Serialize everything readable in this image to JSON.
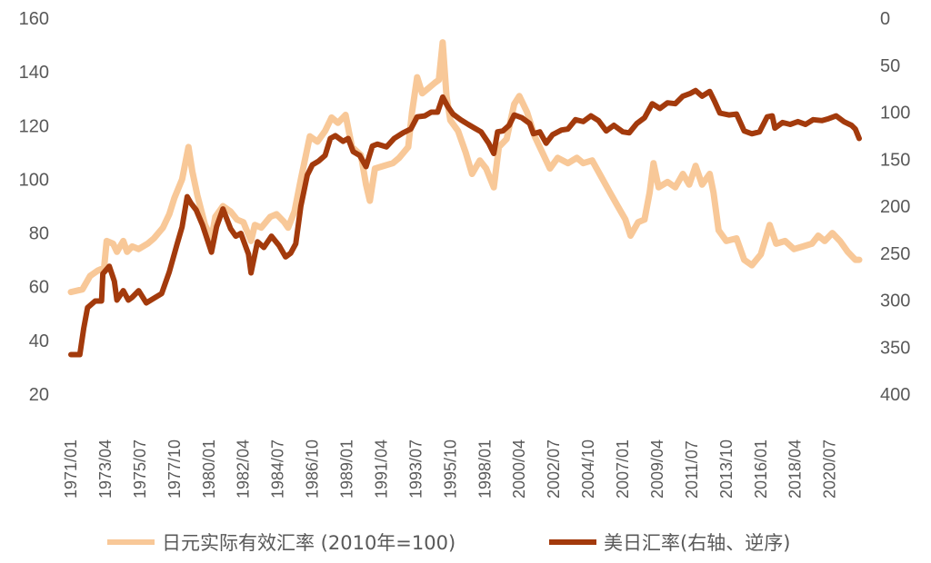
{
  "chart_data": {
    "type": "line",
    "legend_position": "bottom",
    "grid": false,
    "left_axis": {
      "ylim": [
        20,
        160
      ],
      "ticks": [
        "20",
        "40",
        "60",
        "80",
        "100",
        "120",
        "140",
        "160"
      ]
    },
    "right_axis": {
      "ylim": [
        0,
        400
      ],
      "reversed": true,
      "ticks": [
        "0",
        "50",
        "100",
        "150",
        "200",
        "250",
        "300",
        "350",
        "400"
      ]
    },
    "x_axis": {
      "range": [
        "1971/01",
        "2022/06"
      ],
      "tick_labels": [
        "1971/01",
        "1973/04",
        "1975/07",
        "1977/10",
        "1980/01",
        "1982/04",
        "1984/07",
        "1986/10",
        "1989/01",
        "1991/04",
        "1993/07",
        "1995/10",
        "1998/01",
        "2000/04",
        "2002/07",
        "2004/10",
        "2007/01",
        "2009/04",
        "2011/07",
        "2013/10",
        "2016/01",
        "2018/04",
        "2020/07"
      ]
    },
    "series": [
      {
        "name": "日元实际有效汇率 (2010年=100)",
        "axis": "left",
        "color": "#f8c898",
        "points": [
          [
            "1971/01",
            58
          ],
          [
            "1971/10",
            59
          ],
          [
            "1972/04",
            64
          ],
          [
            "1972/10",
            66
          ],
          [
            "1973/03",
            67
          ],
          [
            "1973/05",
            77
          ],
          [
            "1973/10",
            76
          ],
          [
            "1974/01",
            73
          ],
          [
            "1974/06",
            77
          ],
          [
            "1974/09",
            73
          ],
          [
            "1975/01",
            75
          ],
          [
            "1975/06",
            74
          ],
          [
            "1976/01",
            76
          ],
          [
            "1976/06",
            78
          ],
          [
            "1977/01",
            82
          ],
          [
            "1977/06",
            87
          ],
          [
            "1977/10",
            93
          ],
          [
            "1978/04",
            100
          ],
          [
            "1978/09",
            112
          ],
          [
            "1978/12",
            103
          ],
          [
            "1979/04",
            94
          ],
          [
            "1979/10",
            83
          ],
          [
            "1980/03",
            78
          ],
          [
            "1980/06",
            86
          ],
          [
            "1980/12",
            90
          ],
          [
            "1981/06",
            88
          ],
          [
            "1981/11",
            85
          ],
          [
            "1982/04",
            84
          ],
          [
            "1982/10",
            77
          ],
          [
            "1983/01",
            83
          ],
          [
            "1983/06",
            82
          ],
          [
            "1984/01",
            86
          ],
          [
            "1984/06",
            87
          ],
          [
            "1984/12",
            84
          ],
          [
            "1985/03",
            82
          ],
          [
            "1985/08",
            88
          ],
          [
            "1986/01",
            100
          ],
          [
            "1986/08",
            116
          ],
          [
            "1987/02",
            114
          ],
          [
            "1987/08",
            118
          ],
          [
            "1988/01",
            123
          ],
          [
            "1988/06",
            121
          ],
          [
            "1988/12",
            124
          ],
          [
            "1989/05",
            112
          ],
          [
            "1989/12",
            109
          ],
          [
            "1990/04",
            98
          ],
          [
            "1990/07",
            92
          ],
          [
            "1990/11",
            104
          ],
          [
            "1991/06",
            105
          ],
          [
            "1992/01",
            106
          ],
          [
            "1992/06",
            108
          ],
          [
            "1993/01",
            112
          ],
          [
            "1993/04",
            125
          ],
          [
            "1993/08",
            138
          ],
          [
            "1993/12",
            132
          ],
          [
            "1994/05",
            134
          ],
          [
            "1994/10",
            136
          ],
          [
            "1995/01",
            137
          ],
          [
            "1995/04",
            151
          ],
          [
            "1995/07",
            131
          ],
          [
            "1995/10",
            122
          ],
          [
            "1996/04",
            118
          ],
          [
            "1996/10",
            110
          ],
          [
            "1997/03",
            102
          ],
          [
            "1997/09",
            107
          ],
          [
            "1998/02",
            104
          ],
          [
            "1998/08",
            97
          ],
          [
            "1998/12",
            112
          ],
          [
            "1999/06",
            115
          ],
          [
            "1999/12",
            128
          ],
          [
            "2000/04",
            131
          ],
          [
            "2000/10",
            125
          ],
          [
            "2001/04",
            116
          ],
          [
            "2001/10",
            110
          ],
          [
            "2002/04",
            104
          ],
          [
            "2002/10",
            108
          ],
          [
            "2003/06",
            106
          ],
          [
            "2004/01",
            108
          ],
          [
            "2004/06",
            106
          ],
          [
            "2005/01",
            107
          ],
          [
            "2005/08",
            101
          ],
          [
            "2006/03",
            95
          ],
          [
            "2006/09",
            90
          ],
          [
            "2007/03",
            85
          ],
          [
            "2007/07",
            79
          ],
          [
            "2008/01",
            84
          ],
          [
            "2008/06",
            85
          ],
          [
            "2008/10",
            95
          ],
          [
            "2009/01",
            106
          ],
          [
            "2009/05",
            97
          ],
          [
            "2009/12",
            99
          ],
          [
            "2010/06",
            97
          ],
          [
            "2010/12",
            102
          ],
          [
            "2011/05",
            98
          ],
          [
            "2011/10",
            105
          ],
          [
            "2012/03",
            98
          ],
          [
            "2012/09",
            102
          ],
          [
            "2012/12",
            95
          ],
          [
            "2013/04",
            81
          ],
          [
            "2013/10",
            77
          ],
          [
            "2014/06",
            78
          ],
          [
            "2014/12",
            70
          ],
          [
            "2015/06",
            68
          ],
          [
            "2016/01",
            72
          ],
          [
            "2016/08",
            83
          ],
          [
            "2017/01",
            76
          ],
          [
            "2017/08",
            77
          ],
          [
            "2018/03",
            74
          ],
          [
            "2018/10",
            75
          ],
          [
            "2019/05",
            76
          ],
          [
            "2019/10",
            79
          ],
          [
            "2020/03",
            77
          ],
          [
            "2020/09",
            80
          ],
          [
            "2021/03",
            77
          ],
          [
            "2021/09",
            73
          ],
          [
            "2022/03",
            70
          ],
          [
            "2022/06",
            70
          ]
        ]
      },
      {
        "name": "美日汇率(右轴、逆序)",
        "axis": "right",
        "color": "#a33a0c",
        "points": [
          [
            "1971/01",
            358
          ],
          [
            "1971/08",
            358
          ],
          [
            "1971/11",
            330
          ],
          [
            "1972/02",
            308
          ],
          [
            "1972/08",
            301
          ],
          [
            "1973/01",
            301
          ],
          [
            "1973/02",
            272
          ],
          [
            "1973/07",
            264
          ],
          [
            "1973/11",
            280
          ],
          [
            "1974/01",
            300
          ],
          [
            "1974/06",
            290
          ],
          [
            "1974/10",
            300
          ],
          [
            "1975/01",
            297
          ],
          [
            "1975/06",
            290
          ],
          [
            "1975/12",
            303
          ],
          [
            "1976/06",
            298
          ],
          [
            "1976/12",
            293
          ],
          [
            "1977/06",
            270
          ],
          [
            "1977/12",
            241
          ],
          [
            "1978/04",
            222
          ],
          [
            "1978/08",
            190
          ],
          [
            "1978/11",
            197
          ],
          [
            "1979/03",
            204
          ],
          [
            "1979/08",
            220
          ],
          [
            "1980/03",
            249
          ],
          [
            "1980/07",
            222
          ],
          [
            "1980/12",
            203
          ],
          [
            "1981/06",
            224
          ],
          [
            "1981/10",
            232
          ],
          [
            "1982/02",
            229
          ],
          [
            "1982/08",
            251
          ],
          [
            "1982/10",
            271
          ],
          [
            "1983/03",
            238
          ],
          [
            "1983/08",
            244
          ],
          [
            "1984/02",
            232
          ],
          [
            "1984/08",
            242
          ],
          [
            "1985/01",
            254
          ],
          [
            "1985/05",
            250
          ],
          [
            "1985/09",
            240
          ],
          [
            "1986/01",
            200
          ],
          [
            "1986/06",
            167
          ],
          [
            "1986/10",
            156
          ],
          [
            "1987/03",
            152
          ],
          [
            "1987/08",
            146
          ],
          [
            "1987/12",
            128
          ],
          [
            "1988/04",
            125
          ],
          [
            "1988/10",
            131
          ],
          [
            "1989/02",
            128
          ],
          [
            "1989/06",
            142
          ],
          [
            "1989/11",
            146
          ],
          [
            "1990/04",
            158
          ],
          [
            "1990/09",
            136
          ],
          [
            "1991/01",
            134
          ],
          [
            "1991/08",
            137
          ],
          [
            "1992/02",
            128
          ],
          [
            "1992/09",
            122
          ],
          [
            "1993/03",
            118
          ],
          [
            "1993/08",
            105
          ],
          [
            "1994/02",
            104
          ],
          [
            "1994/07",
            100
          ],
          [
            "1994/12",
            100
          ],
          [
            "1995/04",
            84
          ],
          [
            "1995/08",
            94
          ],
          [
            "1995/12",
            102
          ],
          [
            "1996/06",
            108
          ],
          [
            "1996/12",
            113
          ],
          [
            "1997/05",
            117
          ],
          [
            "1997/10",
            121
          ],
          [
            "1998/04",
            133
          ],
          [
            "1998/08",
            144
          ],
          [
            "1998/11",
            121
          ],
          [
            "1999/03",
            120
          ],
          [
            "1999/08",
            114
          ],
          [
            "1999/12",
            103
          ],
          [
            "2000/06",
            106
          ],
          [
            "2000/12",
            112
          ],
          [
            "2001/03",
            123
          ],
          [
            "2001/08",
            121
          ],
          [
            "2002/01",
            133
          ],
          [
            "2002/06",
            124
          ],
          [
            "2003/01",
            119
          ],
          [
            "2003/06",
            118
          ],
          [
            "2003/12",
            108
          ],
          [
            "2004/06",
            110
          ],
          [
            "2004/12",
            104
          ],
          [
            "2005/06",
            109
          ],
          [
            "2005/12",
            120
          ],
          [
            "2006/06",
            114
          ],
          [
            "2007/01",
            121
          ],
          [
            "2007/06",
            122
          ],
          [
            "2007/12",
            112
          ],
          [
            "2008/06",
            106
          ],
          [
            "2008/12",
            91
          ],
          [
            "2009/06",
            96
          ],
          [
            "2009/12",
            90
          ],
          [
            "2010/06",
            91
          ],
          [
            "2010/12",
            83
          ],
          [
            "2011/06",
            80
          ],
          [
            "2011/10",
            77
          ],
          [
            "2012/03",
            83
          ],
          [
            "2012/09",
            78
          ],
          [
            "2013/01",
            89
          ],
          [
            "2013/05",
            101
          ],
          [
            "2013/12",
            103
          ],
          [
            "2014/06",
            102
          ],
          [
            "2014/12",
            120
          ],
          [
            "2015/06",
            123
          ],
          [
            "2015/12",
            121
          ],
          [
            "2016/06",
            105
          ],
          [
            "2016/10",
            104
          ],
          [
            "2016/12",
            117
          ],
          [
            "2017/06",
            111
          ],
          [
            "2017/12",
            113
          ],
          [
            "2018/06",
            110
          ],
          [
            "2018/12",
            113
          ],
          [
            "2019/06",
            108
          ],
          [
            "2020/01",
            109
          ],
          [
            "2020/06",
            107
          ],
          [
            "2020/12",
            104
          ],
          [
            "2021/06",
            110
          ],
          [
            "2021/12",
            114
          ],
          [
            "2022/03",
            118
          ],
          [
            "2022/06",
            128
          ]
        ]
      }
    ]
  }
}
